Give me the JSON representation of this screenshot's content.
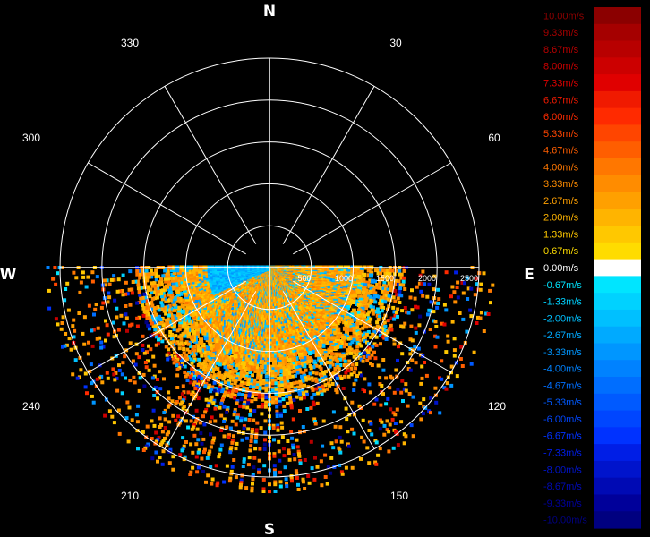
{
  "chart_data": {
    "type": "polar-scatter",
    "title": "",
    "compass": {
      "north": "N",
      "east": "E",
      "south": "S",
      "west": "W"
    },
    "azimuth_labels": [
      "30",
      "60",
      "120",
      "150",
      "210",
      "240",
      "300",
      "330"
    ],
    "azimuth_values": [
      30,
      60,
      120,
      150,
      210,
      240,
      300,
      330
    ],
    "range_labels": [
      "500",
      "1000",
      "1500",
      "2000",
      "2500"
    ],
    "range_values": [
      500,
      1000,
      1500,
      2000,
      2500
    ],
    "range_unit": "m",
    "max_range": 2500,
    "azimuth_coverage": [
      90,
      270
    ],
    "grid": true,
    "colorbar": {
      "placement": "right",
      "unit": "m/s",
      "min": -10.0,
      "max": 10.0,
      "labels": [
        "10.00m/s",
        "9.33m/s",
        "8.67m/s",
        "8.00m/s",
        "7.33m/s",
        "6.67m/s",
        "6.00m/s",
        "5.33m/s",
        "4.67m/s",
        "4.00m/s",
        "3.33m/s",
        "2.67m/s",
        "2.00m/s",
        "1.33m/s",
        "0.67m/s",
        "0.00m/s",
        "-0.67m/s",
        "-1.33m/s",
        "-2.00m/s",
        "-2.67m/s",
        "-3.33m/s",
        "-4.00m/s",
        "-4.67m/s",
        "-5.33m/s",
        "-6.00m/s",
        "-6.67m/s",
        "-7.33m/s",
        "-8.00m/s",
        "-8.67m/s",
        "-9.33m/s",
        "-10.00m/s"
      ],
      "colors": [
        "#8b0000",
        "#a50000",
        "#b80000",
        "#cc0000",
        "#e00000",
        "#f01a00",
        "#ff2a00",
        "#ff4500",
        "#ff5e00",
        "#ff7700",
        "#ff8c00",
        "#ffa000",
        "#ffb400",
        "#ffc800",
        "#ffdc00",
        "#ffffff",
        "#00e5ff",
        "#00d2ff",
        "#00c0ff",
        "#00aaff",
        "#0096ff",
        "#0082ff",
        "#006eff",
        "#005aff",
        "#0046ff",
        "#0032ff",
        "#001ee6",
        "#0014cc",
        "#000ab4",
        "#00009a",
        "#000080"
      ]
    }
  }
}
